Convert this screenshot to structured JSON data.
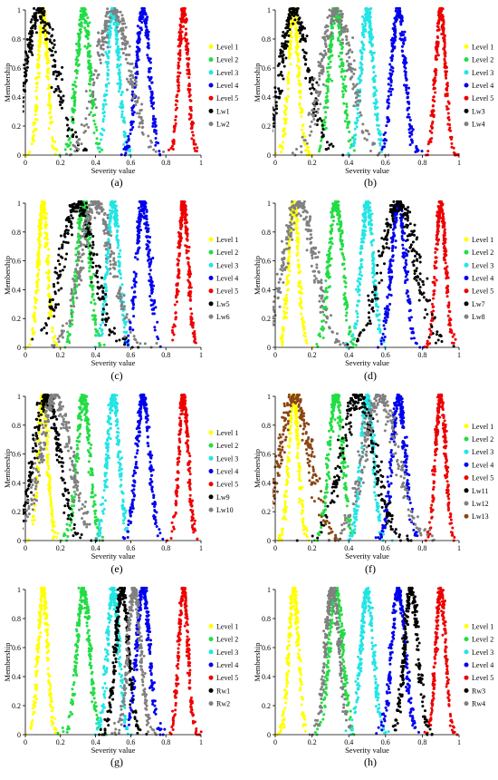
{
  "figure": {
    "panels": [
      "(a)",
      "(b)",
      "(c)",
      "(d)",
      "(e)",
      "(f)",
      "(g)",
      "(h)"
    ]
  },
  "chart_data": [
    {
      "type": "scatter",
      "panel": "(a)",
      "xlabel": "Severity value",
      "ylabel": "Membership",
      "xlim": [
        0,
        1
      ],
      "ylim": [
        0,
        1
      ],
      "xticks": [
        "0",
        "0.2",
        "0.4",
        "0.6",
        "0.8",
        "1"
      ],
      "yticks": [
        "0",
        "0.2",
        "0.4",
        "0.6",
        "0.8",
        "1"
      ],
      "legend_position": "right",
      "series": [
        {
          "name": "Level 1",
          "color": "#ffff00",
          "peak": 0.1,
          "left_zero": 0.02,
          "right_zero": 0.18
        },
        {
          "name": "Level 2",
          "color": "#22dd44",
          "peak": 0.33,
          "left_zero": 0.22,
          "right_zero": 0.44
        },
        {
          "name": "Level 3",
          "color": "#22e5e5",
          "peak": 0.5,
          "left_zero": 0.4,
          "right_zero": 0.6
        },
        {
          "name": "Level 4",
          "color": "#0000ee",
          "peak": 0.67,
          "left_zero": 0.56,
          "right_zero": 0.78
        },
        {
          "name": "Level 5",
          "color": "#ee0000",
          "peak": 0.9,
          "left_zero": 0.82,
          "right_zero": 0.98
        },
        {
          "name": "Lw1",
          "color": "#000000",
          "peak": 0.07,
          "left_zero": -0.12,
          "right_zero": 0.37
        },
        {
          "name": "Lw2",
          "color": "#808080",
          "peak": 0.5,
          "left_zero": 0.24,
          "right_zero": 0.78
        }
      ]
    },
    {
      "type": "scatter",
      "panel": "(b)",
      "xlabel": "Severity value",
      "ylabel": "Membership",
      "xlim": [
        0,
        1
      ],
      "ylim": [
        0,
        1
      ],
      "xticks": [
        "0",
        "0.2",
        "0.4",
        "0.6",
        "0.8",
        "1"
      ],
      "yticks": [
        "0",
        "0.2",
        "0.4",
        "0.6",
        "0.8",
        "1"
      ],
      "legend_position": "right",
      "series": [
        {
          "name": "Level 1",
          "color": "#ffff00",
          "peak": 0.1,
          "left_zero": 0.02,
          "right_zero": 0.18
        },
        {
          "name": "Level 2",
          "color": "#22dd44",
          "peak": 0.33,
          "left_zero": 0.22,
          "right_zero": 0.44
        },
        {
          "name": "Level 3",
          "color": "#22e5e5",
          "peak": 0.5,
          "left_zero": 0.4,
          "right_zero": 0.6
        },
        {
          "name": "Level 4",
          "color": "#0000ee",
          "peak": 0.67,
          "left_zero": 0.56,
          "right_zero": 0.78
        },
        {
          "name": "Level 5",
          "color": "#ee0000",
          "peak": 0.9,
          "left_zero": 0.82,
          "right_zero": 0.98
        },
        {
          "name": "Lw3",
          "color": "#000000",
          "peak": 0.1,
          "left_zero": -0.1,
          "right_zero": 0.34
        },
        {
          "name": "Lw4",
          "color": "#808080",
          "peak": 0.33,
          "left_zero": 0.1,
          "right_zero": 0.58
        }
      ]
    },
    {
      "type": "scatter",
      "panel": "(c)",
      "xlabel": "Severity value",
      "ylabel": "Membership",
      "xlim": [
        0,
        1
      ],
      "ylim": [
        0,
        1
      ],
      "xticks": [
        "0",
        "0.2",
        "0.4",
        "0.6",
        "0.8",
        "1"
      ],
      "yticks": [
        "0",
        "0.2",
        "0.4",
        "0.6",
        "0.8",
        "1"
      ],
      "legend_position": "right",
      "series": [
        {
          "name": "Level 1",
          "color": "#ffff00",
          "peak": 0.1,
          "left_zero": 0.02,
          "right_zero": 0.18
        },
        {
          "name": "Level 2",
          "color": "#22dd44",
          "peak": 0.33,
          "left_zero": 0.22,
          "right_zero": 0.44
        },
        {
          "name": "Level 3",
          "color": "#22e5e5",
          "peak": 0.5,
          "left_zero": 0.4,
          "right_zero": 0.6
        },
        {
          "name": "Level 4",
          "color": "#0000ee",
          "peak": 0.67,
          "left_zero": 0.56,
          "right_zero": 0.78
        },
        {
          "name": "Level 5",
          "color": "#ee0000",
          "peak": 0.9,
          "left_zero": 0.82,
          "right_zero": 0.98
        },
        {
          "name": "Lw5",
          "color": "#000000",
          "peak": 0.3,
          "left_zero": 0.02,
          "right_zero": 0.58
        },
        {
          "name": "Lw6",
          "color": "#808080",
          "peak": 0.4,
          "left_zero": 0.14,
          "right_zero": 0.68
        }
      ]
    },
    {
      "type": "scatter",
      "panel": "(d)",
      "xlabel": "Severity value",
      "ylabel": "Membership",
      "xlim": [
        0,
        1
      ],
      "ylim": [
        0,
        1
      ],
      "xticks": [
        "0",
        "0.2",
        "0.4",
        "0.6",
        "0.8",
        "1"
      ],
      "yticks": [
        "0",
        "0.2",
        "0.4",
        "0.6",
        "0.8",
        "1"
      ],
      "legend_position": "right",
      "series": [
        {
          "name": "Level 1",
          "color": "#ffff00",
          "peak": 0.1,
          "left_zero": 0.02,
          "right_zero": 0.18
        },
        {
          "name": "Level 2",
          "color": "#22dd44",
          "peak": 0.33,
          "left_zero": 0.22,
          "right_zero": 0.44
        },
        {
          "name": "Level 3",
          "color": "#22e5e5",
          "peak": 0.5,
          "left_zero": 0.4,
          "right_zero": 0.6
        },
        {
          "name": "Level 4",
          "color": "#0000ee",
          "peak": 0.67,
          "left_zero": 0.56,
          "right_zero": 0.78
        },
        {
          "name": "Level 5",
          "color": "#ee0000",
          "peak": 0.9,
          "left_zero": 0.82,
          "right_zero": 0.98
        },
        {
          "name": "Lw7",
          "color": "#000000",
          "peak": 0.67,
          "left_zero": 0.4,
          "right_zero": 0.95
        },
        {
          "name": "Lw8",
          "color": "#808080",
          "peak": 0.13,
          "left_zero": -0.12,
          "right_zero": 0.38
        }
      ]
    },
    {
      "type": "scatter",
      "panel": "(e)",
      "xlabel": "Severity value",
      "ylabel": "Membership",
      "xlim": [
        0,
        1
      ],
      "ylim": [
        0,
        1
      ],
      "xticks": [
        "0",
        "0.2",
        "0.4",
        "0.6",
        "0.8",
        "1"
      ],
      "yticks": [
        "0",
        "0.2",
        "0.4",
        "0.6",
        "0.8",
        "1"
      ],
      "legend_position": "right",
      "series": [
        {
          "name": "Level 1",
          "color": "#ffff00",
          "peak": 0.1,
          "left_zero": 0.02,
          "right_zero": 0.18
        },
        {
          "name": "Level 2",
          "color": "#22dd44",
          "peak": 0.33,
          "left_zero": 0.22,
          "right_zero": 0.44
        },
        {
          "name": "Level 3",
          "color": "#22e5e5",
          "peak": 0.5,
          "left_zero": 0.4,
          "right_zero": 0.6
        },
        {
          "name": "Level 4",
          "color": "#0000ee",
          "peak": 0.67,
          "left_zero": 0.56,
          "right_zero": 0.78
        },
        {
          "name": "Level 5",
          "color": "#ee0000",
          "peak": 0.9,
          "left_zero": 0.82,
          "right_zero": 0.98
        },
        {
          "name": "Lw9",
          "color": "#000000",
          "peak": 0.12,
          "left_zero": -0.1,
          "right_zero": 0.34
        },
        {
          "name": "Lw10",
          "color": "#808080",
          "peak": 0.17,
          "left_zero": -0.08,
          "right_zero": 0.43
        }
      ]
    },
    {
      "type": "scatter",
      "panel": "(f)",
      "xlabel": "Severity value",
      "ylabel": "Membership",
      "xlim": [
        0,
        1
      ],
      "ylim": [
        0,
        1
      ],
      "xticks": [
        "0",
        "0.2",
        "0.4",
        "0.6",
        "0.8",
        "1"
      ],
      "yticks": [
        "0",
        "0.2",
        "0.4",
        "0.6",
        "0.8",
        "1"
      ],
      "legend_position": "right",
      "series": [
        {
          "name": "Level 1",
          "color": "#ffff00",
          "peak": 0.1,
          "left_zero": 0.02,
          "right_zero": 0.18
        },
        {
          "name": "Level 2",
          "color": "#22dd44",
          "peak": 0.33,
          "left_zero": 0.22,
          "right_zero": 0.44
        },
        {
          "name": "Level 3",
          "color": "#22e5e5",
          "peak": 0.5,
          "left_zero": 0.4,
          "right_zero": 0.6
        },
        {
          "name": "Level 4",
          "color": "#0000ee",
          "peak": 0.67,
          "left_zero": 0.56,
          "right_zero": 0.78
        },
        {
          "name": "Level 5",
          "color": "#ee0000",
          "peak": 0.9,
          "left_zero": 0.82,
          "right_zero": 0.98
        },
        {
          "name": "Lw11",
          "color": "#000000",
          "peak": 0.45,
          "left_zero": 0.18,
          "right_zero": 0.72
        },
        {
          "name": "Lw12",
          "color": "#808080",
          "peak": 0.57,
          "left_zero": 0.3,
          "right_zero": 0.85
        },
        {
          "name": "Lw13",
          "color": "#8b4513",
          "peak": 0.1,
          "left_zero": -0.12,
          "right_zero": 0.36
        }
      ]
    },
    {
      "type": "scatter",
      "panel": "(g)",
      "xlabel": "Severity value",
      "ylabel": "Membership",
      "xlim": [
        0,
        1
      ],
      "ylim": [
        0,
        1
      ],
      "xticks": [
        "0",
        "0.2",
        "0.4",
        "0.6",
        "0.8",
        "1"
      ],
      "yticks": [
        "0",
        "0.2",
        "0.4",
        "0.6",
        "0.8",
        "1"
      ],
      "legend_position": "right",
      "series": [
        {
          "name": "Level 1",
          "color": "#ffff00",
          "peak": 0.1,
          "left_zero": 0.02,
          "right_zero": 0.18
        },
        {
          "name": "Level 2",
          "color": "#22dd44",
          "peak": 0.33,
          "left_zero": 0.22,
          "right_zero": 0.44
        },
        {
          "name": "Level 3",
          "color": "#22e5e5",
          "peak": 0.5,
          "left_zero": 0.4,
          "right_zero": 0.6
        },
        {
          "name": "Level 4",
          "color": "#0000ee",
          "peak": 0.67,
          "left_zero": 0.56,
          "right_zero": 0.78
        },
        {
          "name": "Level 5",
          "color": "#ee0000",
          "peak": 0.9,
          "left_zero": 0.82,
          "right_zero": 0.98
        },
        {
          "name": "Rw1",
          "color": "#000000",
          "peak": 0.55,
          "left_zero": 0.44,
          "right_zero": 0.66
        },
        {
          "name": "Rw2",
          "color": "#808080",
          "peak": 0.62,
          "left_zero": 0.51,
          "right_zero": 0.73
        }
      ]
    },
    {
      "type": "scatter",
      "panel": "(h)",
      "xlabel": "Severity value",
      "ylabel": "Membership",
      "xlim": [
        0,
        1
      ],
      "ylim": [
        0,
        1
      ],
      "xticks": [
        "0",
        "0.2",
        "0.4",
        "0.6",
        "0.8",
        "1"
      ],
      "yticks": [
        "0",
        "0.2",
        "0.4",
        "0.6",
        "0.8",
        "1"
      ],
      "legend_position": "right",
      "series": [
        {
          "name": "Level 1",
          "color": "#ffff00",
          "peak": 0.1,
          "left_zero": 0.02,
          "right_zero": 0.18
        },
        {
          "name": "Level 2",
          "color": "#22dd44",
          "peak": 0.33,
          "left_zero": 0.22,
          "right_zero": 0.44
        },
        {
          "name": "Level 3",
          "color": "#22e5e5",
          "peak": 0.5,
          "left_zero": 0.4,
          "right_zero": 0.6
        },
        {
          "name": "Level 4",
          "color": "#0000ee",
          "peak": 0.67,
          "left_zero": 0.56,
          "right_zero": 0.78
        },
        {
          "name": "Level 5",
          "color": "#ee0000",
          "peak": 0.9,
          "left_zero": 0.82,
          "right_zero": 0.98
        },
        {
          "name": "Rw3",
          "color": "#000000",
          "peak": 0.74,
          "left_zero": 0.63,
          "right_zero": 0.85
        },
        {
          "name": "Rw4",
          "color": "#808080",
          "peak": 0.31,
          "left_zero": 0.2,
          "right_zero": 0.42
        }
      ]
    }
  ]
}
